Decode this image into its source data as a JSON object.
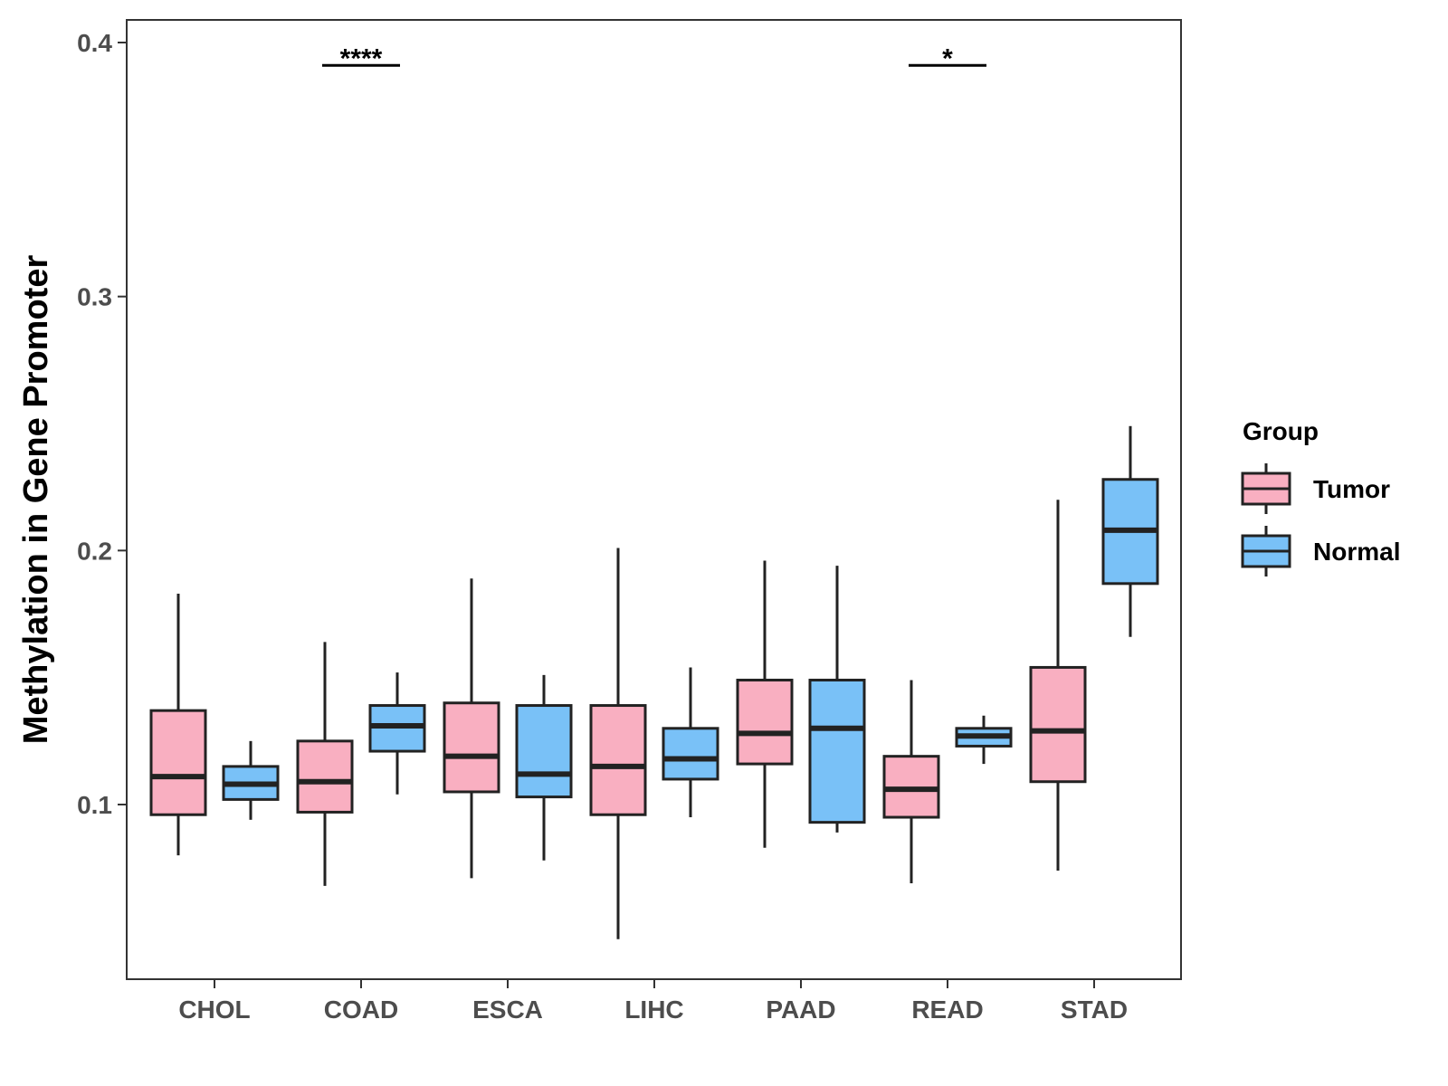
{
  "chart_data": {
    "type": "boxplot",
    "title": "",
    "xlabel": "",
    "ylabel": "Methylation in Gene Promoter",
    "ylim": [
      0.035,
      0.41
    ],
    "yticks": [
      {
        "value": 0.1,
        "label": "0.1"
      },
      {
        "value": 0.2,
        "label": "0.2"
      },
      {
        "value": 0.3,
        "label": "0.3"
      },
      {
        "value": 0.4,
        "label": "0.4"
      }
    ],
    "categories": [
      "CHOL",
      "COAD",
      "ESCA",
      "LIHC",
      "PAAD",
      "READ",
      "STAD"
    ],
    "legend": {
      "title": "Group",
      "position": "right",
      "entries": [
        {
          "name": "Tumor",
          "color": "#F9AFC1"
        },
        {
          "name": "Normal",
          "color": "#79C1F7"
        }
      ]
    },
    "series": [
      {
        "name": "Tumor",
        "color": "#F9AFC1",
        "boxes": [
          {
            "category": "CHOL",
            "min": 0.08,
            "q1": 0.096,
            "median": 0.111,
            "q3": 0.137,
            "max": 0.183
          },
          {
            "category": "COAD",
            "min": 0.068,
            "q1": 0.097,
            "median": 0.109,
            "q3": 0.125,
            "max": 0.164
          },
          {
            "category": "ESCA",
            "min": 0.071,
            "q1": 0.105,
            "median": 0.119,
            "q3": 0.14,
            "max": 0.189
          },
          {
            "category": "LIHC",
            "min": 0.047,
            "q1": 0.096,
            "median": 0.115,
            "q3": 0.139,
            "max": 0.201
          },
          {
            "category": "PAAD",
            "min": 0.083,
            "q1": 0.116,
            "median": 0.128,
            "q3": 0.149,
            "max": 0.196
          },
          {
            "category": "READ",
            "min": 0.069,
            "q1": 0.095,
            "median": 0.106,
            "q3": 0.119,
            "max": 0.149
          },
          {
            "category": "STAD",
            "min": 0.074,
            "q1": 0.109,
            "median": 0.129,
            "q3": 0.154,
            "max": 0.22
          }
        ]
      },
      {
        "name": "Normal",
        "color": "#79C1F7",
        "boxes": [
          {
            "category": "CHOL",
            "min": 0.094,
            "q1": 0.102,
            "median": 0.108,
            "q3": 0.115,
            "max": 0.125
          },
          {
            "category": "COAD",
            "min": 0.104,
            "q1": 0.121,
            "median": 0.131,
            "q3": 0.139,
            "max": 0.152
          },
          {
            "category": "ESCA",
            "min": 0.078,
            "q1": 0.103,
            "median": 0.112,
            "q3": 0.139,
            "max": 0.151
          },
          {
            "category": "LIHC",
            "min": 0.095,
            "q1": 0.11,
            "median": 0.118,
            "q3": 0.13,
            "max": 0.154
          },
          {
            "category": "PAAD",
            "min": 0.089,
            "q1": 0.093,
            "median": 0.13,
            "q3": 0.149,
            "max": 0.194
          },
          {
            "category": "READ",
            "min": 0.116,
            "q1": 0.123,
            "median": 0.127,
            "q3": 0.13,
            "max": 0.135
          },
          {
            "category": "STAD",
            "min": 0.166,
            "q1": 0.187,
            "median": 0.208,
            "q3": 0.228,
            "max": 0.249
          }
        ]
      }
    ],
    "annotations": [
      {
        "category": "COAD",
        "label": "****",
        "y": 0.391
      },
      {
        "category": "READ",
        "label": "*",
        "y": 0.391
      }
    ]
  }
}
